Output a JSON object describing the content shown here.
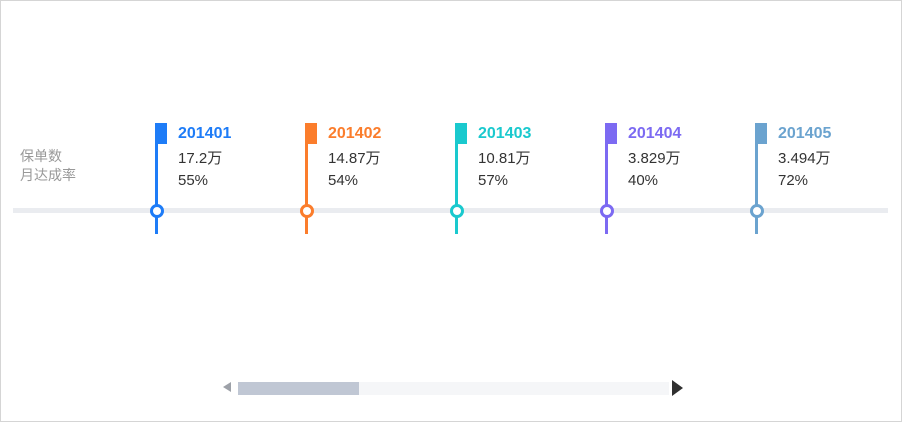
{
  "labels": {
    "policy_count": "保单数",
    "achievement_rate": "月达成率"
  },
  "timeline": {
    "axis_color": "#EAECF0",
    "items": [
      {
        "month": "201401",
        "value": "17.2万",
        "rate": "55%",
        "color": "#1E7CF7"
      },
      {
        "month": "201402",
        "value": "14.87万",
        "rate": "54%",
        "color": "#FB7D2C"
      },
      {
        "month": "201403",
        "value": "10.81万",
        "rate": "57%",
        "color": "#1AC9CE"
      },
      {
        "month": "201404",
        "value": "3.829万",
        "rate": "40%",
        "color": "#7C6AF2"
      },
      {
        "month": "201405",
        "value": "3.494万",
        "rate": "72%",
        "color": "#6BA3CF"
      }
    ]
  },
  "scrollbar": {
    "track_color": "#F5F6F8",
    "thumb_color": "#C0C7D4",
    "left_arrow_color": "#9DA1A8",
    "right_arrow_color": "#303030",
    "thumb_width_pct": 28,
    "thumb_left_pct": 0
  },
  "chart_data": {
    "type": "table",
    "subtype": "horizontal-timeline",
    "title": "",
    "categories": [
      "201401",
      "201402",
      "201403",
      "201404",
      "201405"
    ],
    "series": [
      {
        "name": "保单数",
        "values": [
          "17.2万",
          "14.87万",
          "10.81万",
          "3.829万",
          "3.494万"
        ]
      },
      {
        "name": "月达成率",
        "values": [
          "55%",
          "54%",
          "57%",
          "40%",
          "72%"
        ]
      }
    ],
    "category_colors": [
      "#1E7CF7",
      "#FB7D2C",
      "#1AC9CE",
      "#7C6AF2",
      "#6BA3CF"
    ],
    "legend_position": "none",
    "grid": false,
    "scrollbar_visible_fraction": 0.28
  }
}
